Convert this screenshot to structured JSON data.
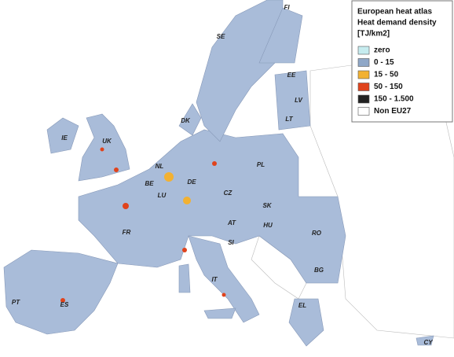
{
  "legend": {
    "title": [
      "European heat atlas",
      "Heat demand density",
      "[TJ/km2]"
    ],
    "items": [
      {
        "label": "zero",
        "color": "#c6ecef"
      },
      {
        "label": "0 - 15",
        "color": "#8fa8c8"
      },
      {
        "label": "15 - 50",
        "color": "#f2b132"
      },
      {
        "label": "50 - 150",
        "color": "#e0431c"
      },
      {
        "label": "150 - 1.500",
        "color": "#222222"
      },
      {
        "label": "Non EU27",
        "color": "#ffffff"
      }
    ]
  },
  "countries": [
    "FI",
    "SE",
    "EE",
    "LV",
    "LT",
    "DK",
    "IE",
    "UK",
    "NL",
    "BE",
    "DE",
    "PL",
    "LU",
    "CZ",
    "SK",
    "FR",
    "AT",
    "HU",
    "RO",
    "SI",
    "BG",
    "IT",
    "PT",
    "ES",
    "EL",
    "CY"
  ]
}
